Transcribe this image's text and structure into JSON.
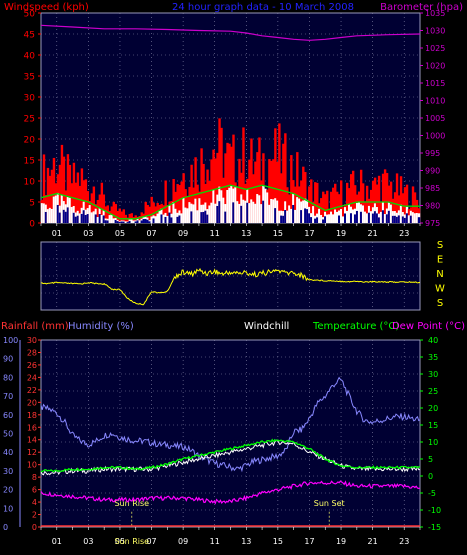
{
  "colors": {
    "background": "#000000",
    "panel": "#000033",
    "grid": "#8888aa",
    "windspeed": "#ff0000",
    "gust_base": "#ff2020",
    "wind_white": "#ffffff",
    "wind_avg": "#00dd00",
    "barometer": "#cc00cc",
    "direction": "#ffff00",
    "rainfall": "#ff3333",
    "humidity": "#8888ff",
    "windchill": "#ffffff",
    "temperature": "#00ff00",
    "dewpoint": "#ff00ff",
    "sun": "#ffff66"
  },
  "chart_data": [
    {
      "type": "line",
      "title": "24 hour graph data - 10 March 2008",
      "xlabel": "",
      "x_ticks": [
        "01",
        "03",
        "05",
        "07",
        "09",
        "11",
        "13",
        "15",
        "17",
        "19",
        "21",
        "23"
      ],
      "xlim": [
        0,
        24
      ],
      "left_axis": {
        "label": "Windspeed (kph)",
        "ticks": [
          0,
          5,
          10,
          15,
          20,
          25,
          30,
          35,
          40,
          45,
          50
        ],
        "ylim": [
          0,
          50
        ]
      },
      "right_axis": {
        "label": "Barometer (hpa)",
        "ticks": [
          975,
          980,
          985,
          990,
          995,
          1000,
          1005,
          1010,
          1015,
          1020,
          1025,
          1030,
          1035
        ],
        "ylim": [
          975,
          1035
        ]
      },
      "grid": true,
      "series": [
        {
          "name": "Windspeed (kph)",
          "axis": "left",
          "style": "filled-bars",
          "x": [
            0,
            0.5,
            1,
            1.5,
            2,
            2.5,
            3,
            3.5,
            4,
            4.5,
            5,
            5.5,
            6,
            6.5,
            7,
            7.5,
            8,
            8.5,
            9,
            9.5,
            10,
            10.5,
            11,
            11.5,
            12,
            12.5,
            13,
            13.5,
            14,
            14.5,
            15,
            15.5,
            16,
            16.5,
            17,
            17.5,
            18,
            18.5,
            19,
            19.5,
            20,
            20.5,
            21,
            21.5,
            22,
            22.5,
            23,
            23.5,
            24
          ],
          "values": [
            12,
            14,
            16,
            13,
            11,
            12,
            9,
            10,
            6,
            4,
            3,
            2,
            2,
            4,
            5,
            7,
            9,
            11,
            13,
            14,
            15,
            18,
            20,
            19,
            16,
            17,
            18,
            15,
            16,
            17,
            18,
            16,
            14,
            12,
            9,
            8,
            6,
            7,
            8,
            9,
            10,
            10,
            9,
            11,
            10,
            9,
            8,
            7,
            6
          ]
        },
        {
          "name": "Windspeed average",
          "axis": "left",
          "style": "line",
          "x": [
            0,
            1,
            2,
            3,
            4,
            5,
            6,
            7,
            8,
            9,
            10,
            11,
            12,
            13,
            14,
            15,
            16,
            17,
            18,
            19,
            20,
            21,
            22,
            23,
            24
          ],
          "values": [
            6,
            7,
            6,
            5,
            3,
            1,
            1,
            2,
            4,
            6,
            7,
            8,
            9,
            8,
            9,
            8,
            7,
            5,
            3,
            4,
            5,
            5,
            5,
            4,
            4
          ]
        },
        {
          "name": "Barometer (hpa)",
          "axis": "right",
          "style": "line",
          "x": [
            0,
            2,
            4,
            6,
            8,
            10,
            12,
            13,
            14,
            15,
            16,
            17,
            18,
            19,
            20,
            22,
            24
          ],
          "values": [
            1031.5,
            1031,
            1030.5,
            1030.5,
            1030.3,
            1030,
            1029.8,
            1029.3,
            1028.5,
            1028,
            1027.5,
            1027.2,
            1027.5,
            1028,
            1028.5,
            1028.8,
            1029
          ]
        }
      ]
    },
    {
      "type": "line",
      "x_ticks": [],
      "xlim": [
        0,
        24
      ],
      "side_labels": [
        "S",
        "E",
        "N",
        "W",
        "S"
      ],
      "direction_ticks": [
        0,
        90,
        180,
        270,
        360
      ],
      "grid": true,
      "series": [
        {
          "name": "Wind direction",
          "style": "line",
          "x": [
            0,
            0.5,
            1,
            1.5,
            2,
            2.5,
            3,
            3.5,
            4,
            4.5,
            5,
            5.5,
            6,
            6.5,
            7,
            7.5,
            8,
            8.5,
            9,
            9.5,
            10,
            10.5,
            11,
            11.5,
            12,
            12.5,
            13,
            13.5,
            14,
            14.5,
            15,
            15.5,
            16,
            16.5,
            17,
            17.5,
            18,
            18.5,
            19,
            19.5,
            20,
            20.5,
            21,
            21.5,
            22,
            22.5,
            23,
            23.5,
            24
          ],
          "values": [
            218,
            220,
            215,
            218,
            220,
            222,
            215,
            220,
            222,
            250,
            252,
            300,
            325,
            330,
            262,
            270,
            262,
            180,
            160,
            170,
            150,
            165,
            155,
            170,
            160,
            165,
            162,
            172,
            165,
            160,
            150,
            165,
            162,
            178,
            200,
            202,
            205,
            205,
            208,
            210,
            208,
            212,
            210,
            210,
            212,
            212,
            212,
            212,
            215
          ]
        }
      ]
    },
    {
      "type": "line",
      "x_ticks": [
        "01",
        "03",
        "05",
        "07",
        "09",
        "11",
        "13",
        "15",
        "17",
        "19",
        "21",
        "23"
      ],
      "xlim": [
        0,
        24
      ],
      "axis_titles": {
        "rainfall": "Rainfall (mm)",
        "humidity": "Humidity (%)",
        "windchill": "Windchill",
        "temperature": "Temperature (°C)",
        "dewpoint": "Dew Point (°C)"
      },
      "humidity_axis": {
        "ticks": [
          0,
          10,
          20,
          30,
          40,
          50,
          60,
          70,
          80,
          90,
          100
        ],
        "ylim": [
          0,
          100
        ]
      },
      "rainfall_axis": {
        "ticks": [
          0,
          2,
          4,
          6,
          8,
          10,
          12,
          14,
          16,
          18,
          20,
          22,
          24,
          26,
          28,
          30
        ],
        "ylim": [
          0,
          30
        ]
      },
      "temperature_axis": {
        "ticks": [
          -15,
          -10,
          -5,
          0,
          5,
          10,
          15,
          20,
          25,
          30,
          35,
          40
        ],
        "ylim": [
          -15,
          40
        ]
      },
      "annotations": [
        {
          "label": "Sun Rise",
          "x": 5.75
        },
        {
          "label": "Sun Set",
          "x": 18.25
        }
      ],
      "bottom_overlap_label": "Sun Rise",
      "grid": true,
      "series": [
        {
          "name": "Humidity (%)",
          "axis": "humidity",
          "x": [
            0,
            0.5,
            1,
            1.5,
            2,
            2.5,
            3,
            3.5,
            4,
            4.5,
            5,
            5.5,
            6,
            6.5,
            7,
            7.5,
            8,
            8.5,
            9,
            9.5,
            10,
            10.5,
            11,
            11.5,
            12,
            12.5,
            13,
            13.5,
            14,
            14.5,
            15,
            15.5,
            16,
            16.5,
            17,
            17.5,
            18,
            18.5,
            19,
            19.5,
            20,
            20.5,
            21,
            21.5,
            22,
            22.5,
            23,
            23.5,
            24
          ],
          "values": [
            64,
            63,
            61,
            56,
            49,
            46,
            44,
            46,
            49,
            50,
            48,
            47,
            46,
            46,
            45,
            44,
            44,
            43,
            43,
            41,
            38,
            36,
            34,
            33,
            32,
            31,
            33,
            35,
            36,
            37,
            38,
            41,
            51,
            52,
            58,
            66,
            70,
            76,
            79,
            70,
            62,
            57,
            56,
            57,
            58,
            59,
            59,
            58,
            57
          ]
        },
        {
          "name": "Temperature (°C)",
          "axis": "temperature",
          "x": [
            0,
            1,
            2,
            3,
            4,
            5,
            6,
            7,
            8,
            9,
            10,
            11,
            12,
            13,
            14,
            15,
            16,
            17,
            18,
            19,
            20,
            21,
            22,
            23,
            24
          ],
          "values": [
            1.5,
            1.5,
            2,
            2,
            2.5,
            2.5,
            2,
            2.5,
            3.5,
            5,
            6,
            7,
            8,
            9,
            10,
            10.5,
            10,
            8,
            5,
            3,
            2.5,
            2.5,
            2.5,
            2.5,
            2.5
          ]
        },
        {
          "name": "Windchill",
          "axis": "temperature",
          "x": [
            0,
            1,
            2,
            3,
            4,
            5,
            6,
            7,
            8,
            9,
            10,
            11,
            12,
            13,
            14,
            15,
            16,
            17,
            18,
            19,
            20,
            21,
            22,
            23,
            24
          ],
          "values": [
            1,
            1,
            1.5,
            1.5,
            2,
            2,
            2,
            2,
            3,
            4,
            5,
            6,
            7,
            8,
            9,
            10,
            9.5,
            7,
            5,
            3,
            2,
            2,
            2,
            2,
            2
          ]
        },
        {
          "name": "Dew Point (°C)",
          "axis": "temperature",
          "x": [
            0,
            1,
            2,
            3,
            4,
            5,
            6,
            7,
            8,
            9,
            10,
            11,
            12,
            13,
            14,
            15,
            16,
            17,
            18,
            19,
            20,
            21,
            22,
            23,
            24
          ],
          "values": [
            -5,
            -5.5,
            -6,
            -6.5,
            -7,
            -7,
            -7,
            -6.5,
            -6.5,
            -6.5,
            -7,
            -7.5,
            -7.5,
            -6.5,
            -5,
            -4,
            -3,
            -2,
            -2,
            -2,
            -3,
            -3,
            -3,
            -3,
            -3.5
          ]
        },
        {
          "name": "Rainfall (mm)",
          "axis": "rainfall",
          "x": [
            0,
            24
          ],
          "values": [
            0,
            0
          ]
        }
      ]
    }
  ]
}
